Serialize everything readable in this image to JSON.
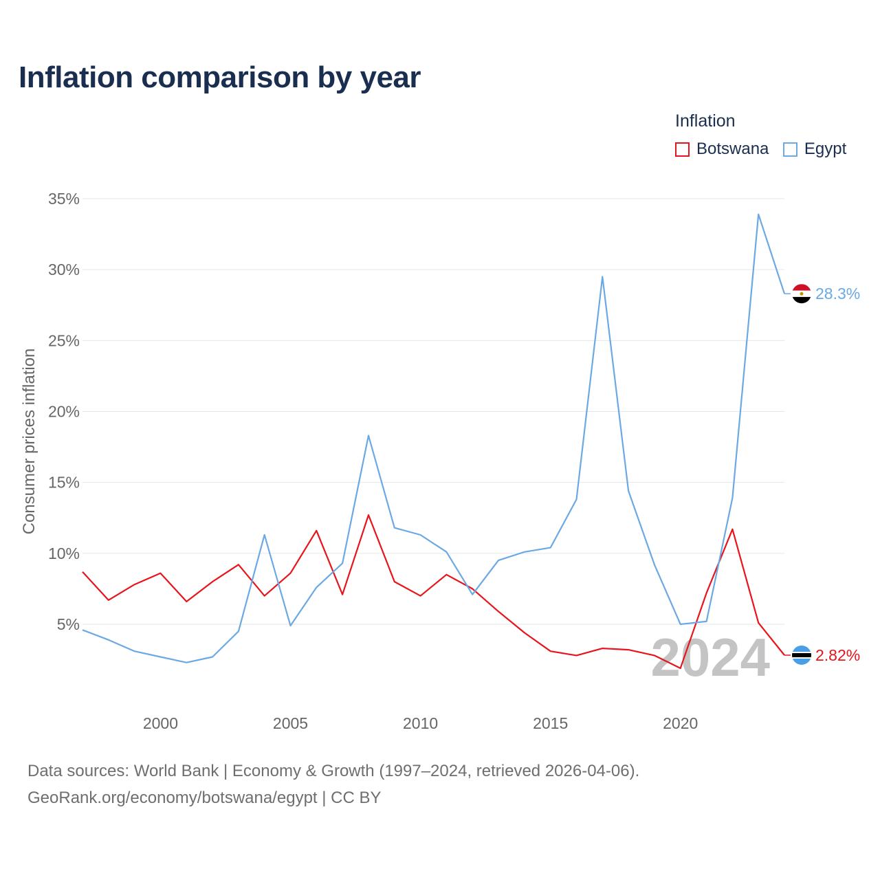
{
  "title": "Inflation comparison by year",
  "colors": {
    "botswana": "#e8141c",
    "egypt": "#6aa9e3",
    "title": "#1a2e4f"
  },
  "legend": {
    "title": "Inflation",
    "items": [
      {
        "label": "Botswana",
        "color": "#e8141c"
      },
      {
        "label": "Egypt",
        "color": "#6aa9e3"
      }
    ]
  },
  "chart_data": {
    "type": "line",
    "title": "Inflation comparison by year",
    "xlabel": "",
    "ylabel": "Consumer prices inflation",
    "xlim": [
      1997,
      2024
    ],
    "ylim": [
      0,
      35
    ],
    "x_ticks": [
      2000,
      2005,
      2010,
      2015,
      2020
    ],
    "y_ticks": [
      5,
      10,
      15,
      20,
      25,
      30,
      35
    ],
    "y_tick_labels": [
      "5%",
      "10%",
      "15%",
      "20%",
      "25%",
      "30%",
      "35%"
    ],
    "grid": true,
    "legend_position": "top-right",
    "year_watermark": "2024",
    "x": [
      1997,
      1998,
      1999,
      2000,
      2001,
      2002,
      2003,
      2004,
      2005,
      2006,
      2007,
      2008,
      2009,
      2010,
      2011,
      2012,
      2013,
      2014,
      2015,
      2016,
      2017,
      2018,
      2019,
      2020,
      2021,
      2022,
      2023,
      2024
    ],
    "series": [
      {
        "name": "Botswana",
        "color": "#e8141c",
        "values": [
          8.7,
          6.7,
          7.8,
          8.6,
          6.6,
          8.0,
          9.2,
          7.0,
          8.6,
          11.6,
          7.1,
          12.7,
          8.0,
          7.0,
          8.5,
          7.5,
          5.9,
          4.4,
          3.1,
          2.8,
          3.3,
          3.2,
          2.8,
          1.9,
          7.2,
          11.7,
          5.1,
          2.82
        ],
        "end_label": "2.82%"
      },
      {
        "name": "Egypt",
        "color": "#6aa9e3",
        "values": [
          4.6,
          3.9,
          3.1,
          2.7,
          2.3,
          2.7,
          4.5,
          11.3,
          4.9,
          7.6,
          9.3,
          18.3,
          11.8,
          11.3,
          10.1,
          7.1,
          9.5,
          10.1,
          10.4,
          13.8,
          29.5,
          14.4,
          9.2,
          5.0,
          5.2,
          13.9,
          33.9,
          28.3
        ],
        "end_label": "28.3%"
      }
    ]
  },
  "footer": {
    "line1": "Data sources: World Bank | Economy & Growth (1997–2024, retrieved 2026-04-06).",
    "line2": "GeoRank.org/economy/botswana/egypt | CC BY"
  }
}
